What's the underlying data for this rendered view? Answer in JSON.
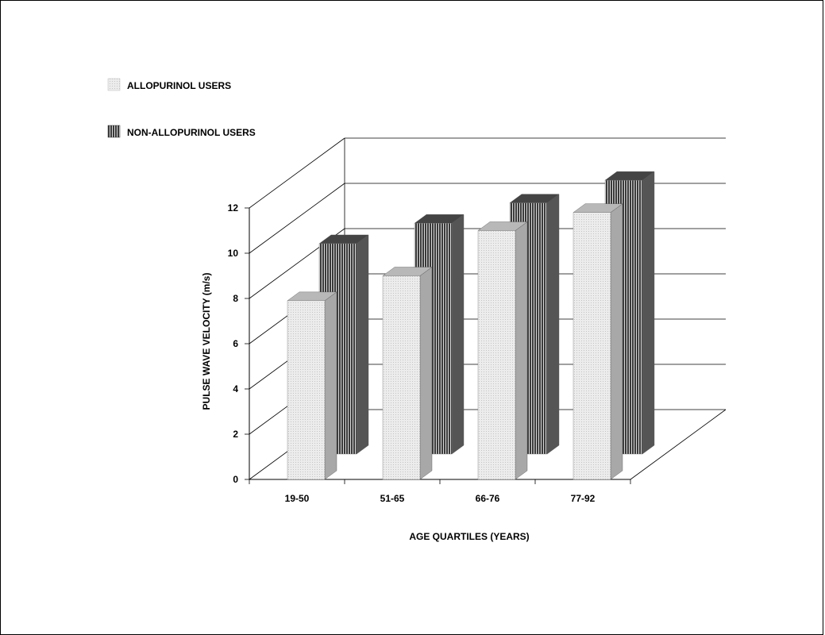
{
  "chart_data": {
    "type": "bar",
    "title": "",
    "xlabel": "AGE QUARTILES (YEARS)",
    "ylabel": "PULSE WAVE VELOCITY (m/s)",
    "ylim": [
      0,
      12
    ],
    "yticks": [
      "0",
      "2",
      "4",
      "6",
      "8",
      "10",
      "12"
    ],
    "categories": [
      "19-50",
      "51-65",
      "66-76",
      "77-92"
    ],
    "series": [
      {
        "name": "ALLOPURINOL USERS",
        "values": [
          7.9,
          9.0,
          11.0,
          11.8
        ]
      },
      {
        "name": "NON-ALLOPURINOL USERS",
        "values": [
          9.3,
          10.2,
          11.1,
          12.1
        ]
      }
    ],
    "legend": "top-left",
    "grid": true,
    "colors": {
      "allopurinol_front": "#e6e6e6",
      "allopurinol_side": "#a8a8a8",
      "allopurinol_top": "#b8b8b8",
      "non_allopurinol_front": "#2e2e2e",
      "non_allopurinol_side": "#555555",
      "non_allopurinol_top": "#444444",
      "gridline": "#000000"
    }
  }
}
